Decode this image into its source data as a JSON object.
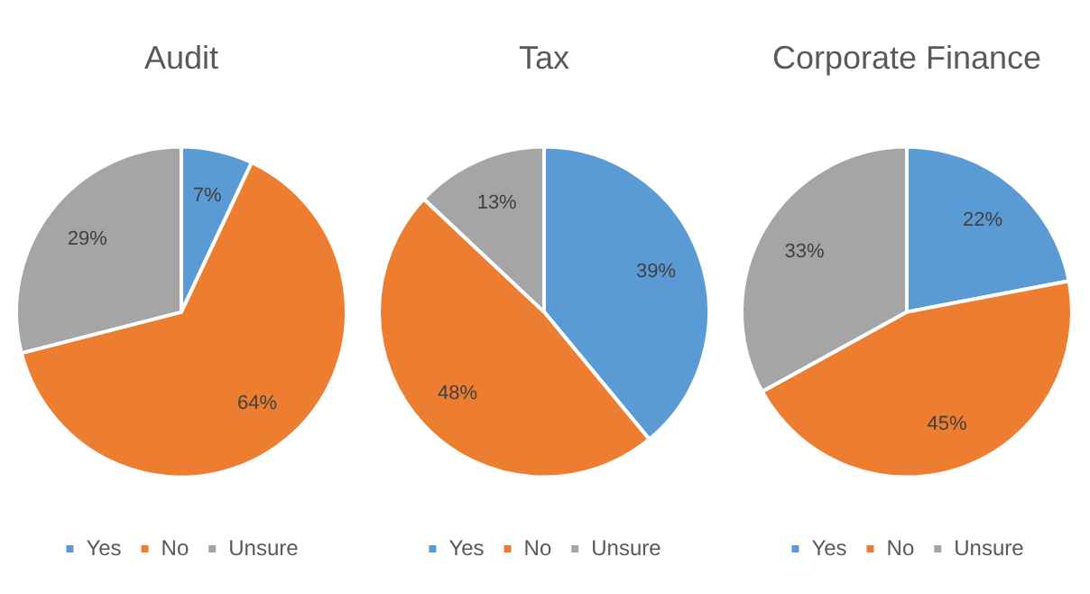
{
  "chart_data": [
    {
      "type": "pie",
      "title": "Audit",
      "categories": [
        "Yes",
        "No",
        "Unsure"
      ],
      "values": [
        7,
        64,
        29
      ],
      "value_labels": [
        "7%",
        "64%",
        "29%"
      ],
      "colors": [
        "#5b9bd5",
        "#ed7d31",
        "#a5a5a5"
      ],
      "legend": "bottom"
    },
    {
      "type": "pie",
      "title": "Tax",
      "categories": [
        "Yes",
        "No",
        "Unsure"
      ],
      "values": [
        39,
        48,
        13
      ],
      "value_labels": [
        "39%",
        "48%",
        "13%"
      ],
      "colors": [
        "#5b9bd5",
        "#ed7d31",
        "#a5a5a5"
      ],
      "legend": "bottom"
    },
    {
      "type": "pie",
      "title": "Corporate Finance",
      "categories": [
        "Yes",
        "No",
        "Unsure"
      ],
      "values": [
        22,
        45,
        33
      ],
      "value_labels": [
        "22%",
        "45%",
        "33%"
      ],
      "colors": [
        "#5b9bd5",
        "#ed7d31",
        "#a5a5a5"
      ],
      "legend": "bottom"
    }
  ]
}
